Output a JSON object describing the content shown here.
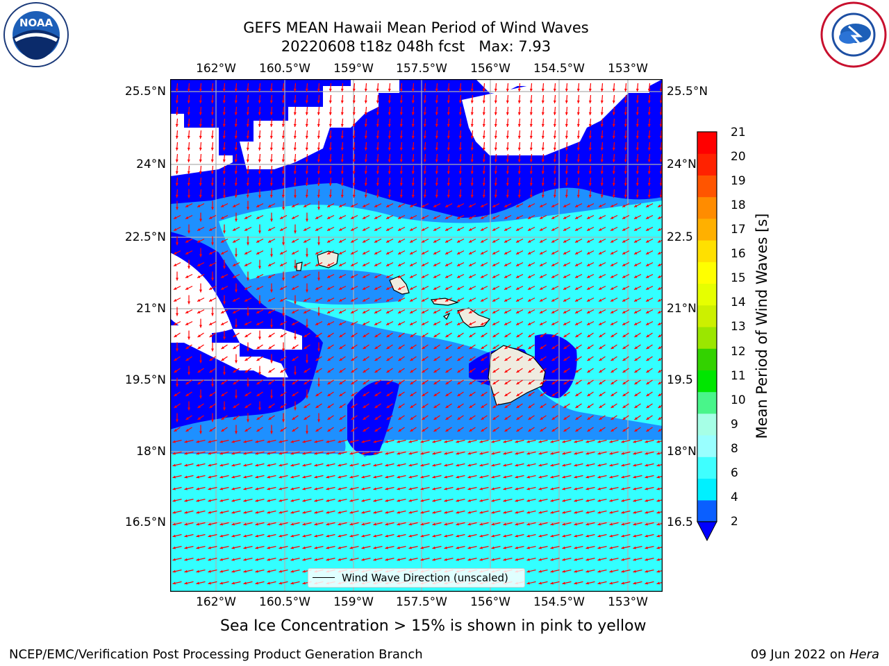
{
  "title_line1": "GEFS MEAN Hawaii Mean Period of Wind Waves",
  "title_line2": "20220608 t18z 048h fcst   Max: 7.93",
  "logos": {
    "noaa": {
      "text": "NOAA",
      "ring_text": "NATIONAL OCEANIC AND ATMOSPHERIC ADMINISTRATION · U.S. DEPARTMENT OF COMMERCE"
    },
    "nws": {
      "ring_text": "NATIONAL WEATHER SERVICE"
    }
  },
  "map": {
    "lon_ticks": [
      "162°W",
      "160.5°W",
      "159°W",
      "157.5°W",
      "156°W",
      "154.5°W",
      "153°W"
    ],
    "lat_ticks_left": [
      "25.5°N",
      "24°N",
      "22.5°N",
      "21°N",
      "19.5°N",
      "18°N",
      "16.5°N"
    ],
    "lat_ticks_right": [
      "25.5°N",
      "24°N",
      "22.5",
      "21°N",
      "19.5",
      "18°N",
      "16.5"
    ],
    "legend_label": "Wind Wave Direction (unscaled)",
    "colors": {
      "level_2_4": "#0000ff",
      "level_4_6": "#1e90ff",
      "level_6_8": "#33ffff",
      "land": "#efece0",
      "arrows": "#ff0000",
      "grid": "#b0b0b0"
    }
  },
  "colorbar": {
    "label": "Mean Period of Wind Waves [s]",
    "ticks": [
      "21",
      "20",
      "19",
      "18",
      "17",
      "16",
      "15",
      "14",
      "13",
      "12",
      "11",
      "10",
      "9",
      "8",
      "6",
      "4",
      "2"
    ],
    "colors_bottom_to_top": [
      "#0a5fff",
      "#00f0ff",
      "#3fffff",
      "#99ffff",
      "#a6ffe6",
      "#49f58a",
      "#00e600",
      "#33d200",
      "#9be600",
      "#ccf000",
      "#e6ff00",
      "#ffff00",
      "#ffe000",
      "#ffb000",
      "#ff8c00",
      "#ff5500",
      "#ff2200",
      "#ff0000"
    ],
    "extend_color": "#0000ff"
  },
  "caption": "Sea Ice Concentration > 15% is shown in pink to yellow",
  "footer_left": "NCEP/EMC/Verification Post Processing Product Generation Branch",
  "footer_date": "09 Jun 2022 on ",
  "footer_host": "Hera"
}
